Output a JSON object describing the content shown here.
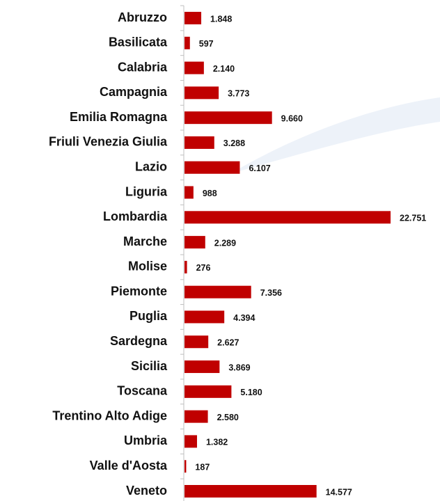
{
  "chart_data": {
    "type": "bar",
    "orientation": "horizontal",
    "color": "#c00000",
    "categories": [
      "Abruzzo",
      "Basilicata",
      "Calabria",
      "Campagnia",
      "Emilia Romagna",
      "Friuli Venezia Giulia",
      "Lazio",
      "Liguria",
      "Lombardia",
      "Marche",
      "Molise",
      "Piemonte",
      "Puglia",
      "Sardegna",
      "Sicilia",
      "Toscana",
      "Trentino Alto Adige",
      "Umbria",
      "Valle d'Aosta",
      "Veneto"
    ],
    "values": [
      1848,
      597,
      2140,
      3773,
      9660,
      3288,
      6107,
      988,
      22751,
      2289,
      276,
      7356,
      4394,
      2627,
      3869,
      5180,
      2580,
      1382,
      187,
      14577
    ],
    "value_labels": [
      "1.848",
      "597",
      "2.140",
      "3.773",
      "9.660",
      "3.288",
      "6.107",
      "988",
      "22.751",
      "2.289",
      "276",
      "7.356",
      "4.394",
      "2.627",
      "3.869",
      "5.180",
      "2.580",
      "1.382",
      "187",
      "14.577"
    ]
  }
}
